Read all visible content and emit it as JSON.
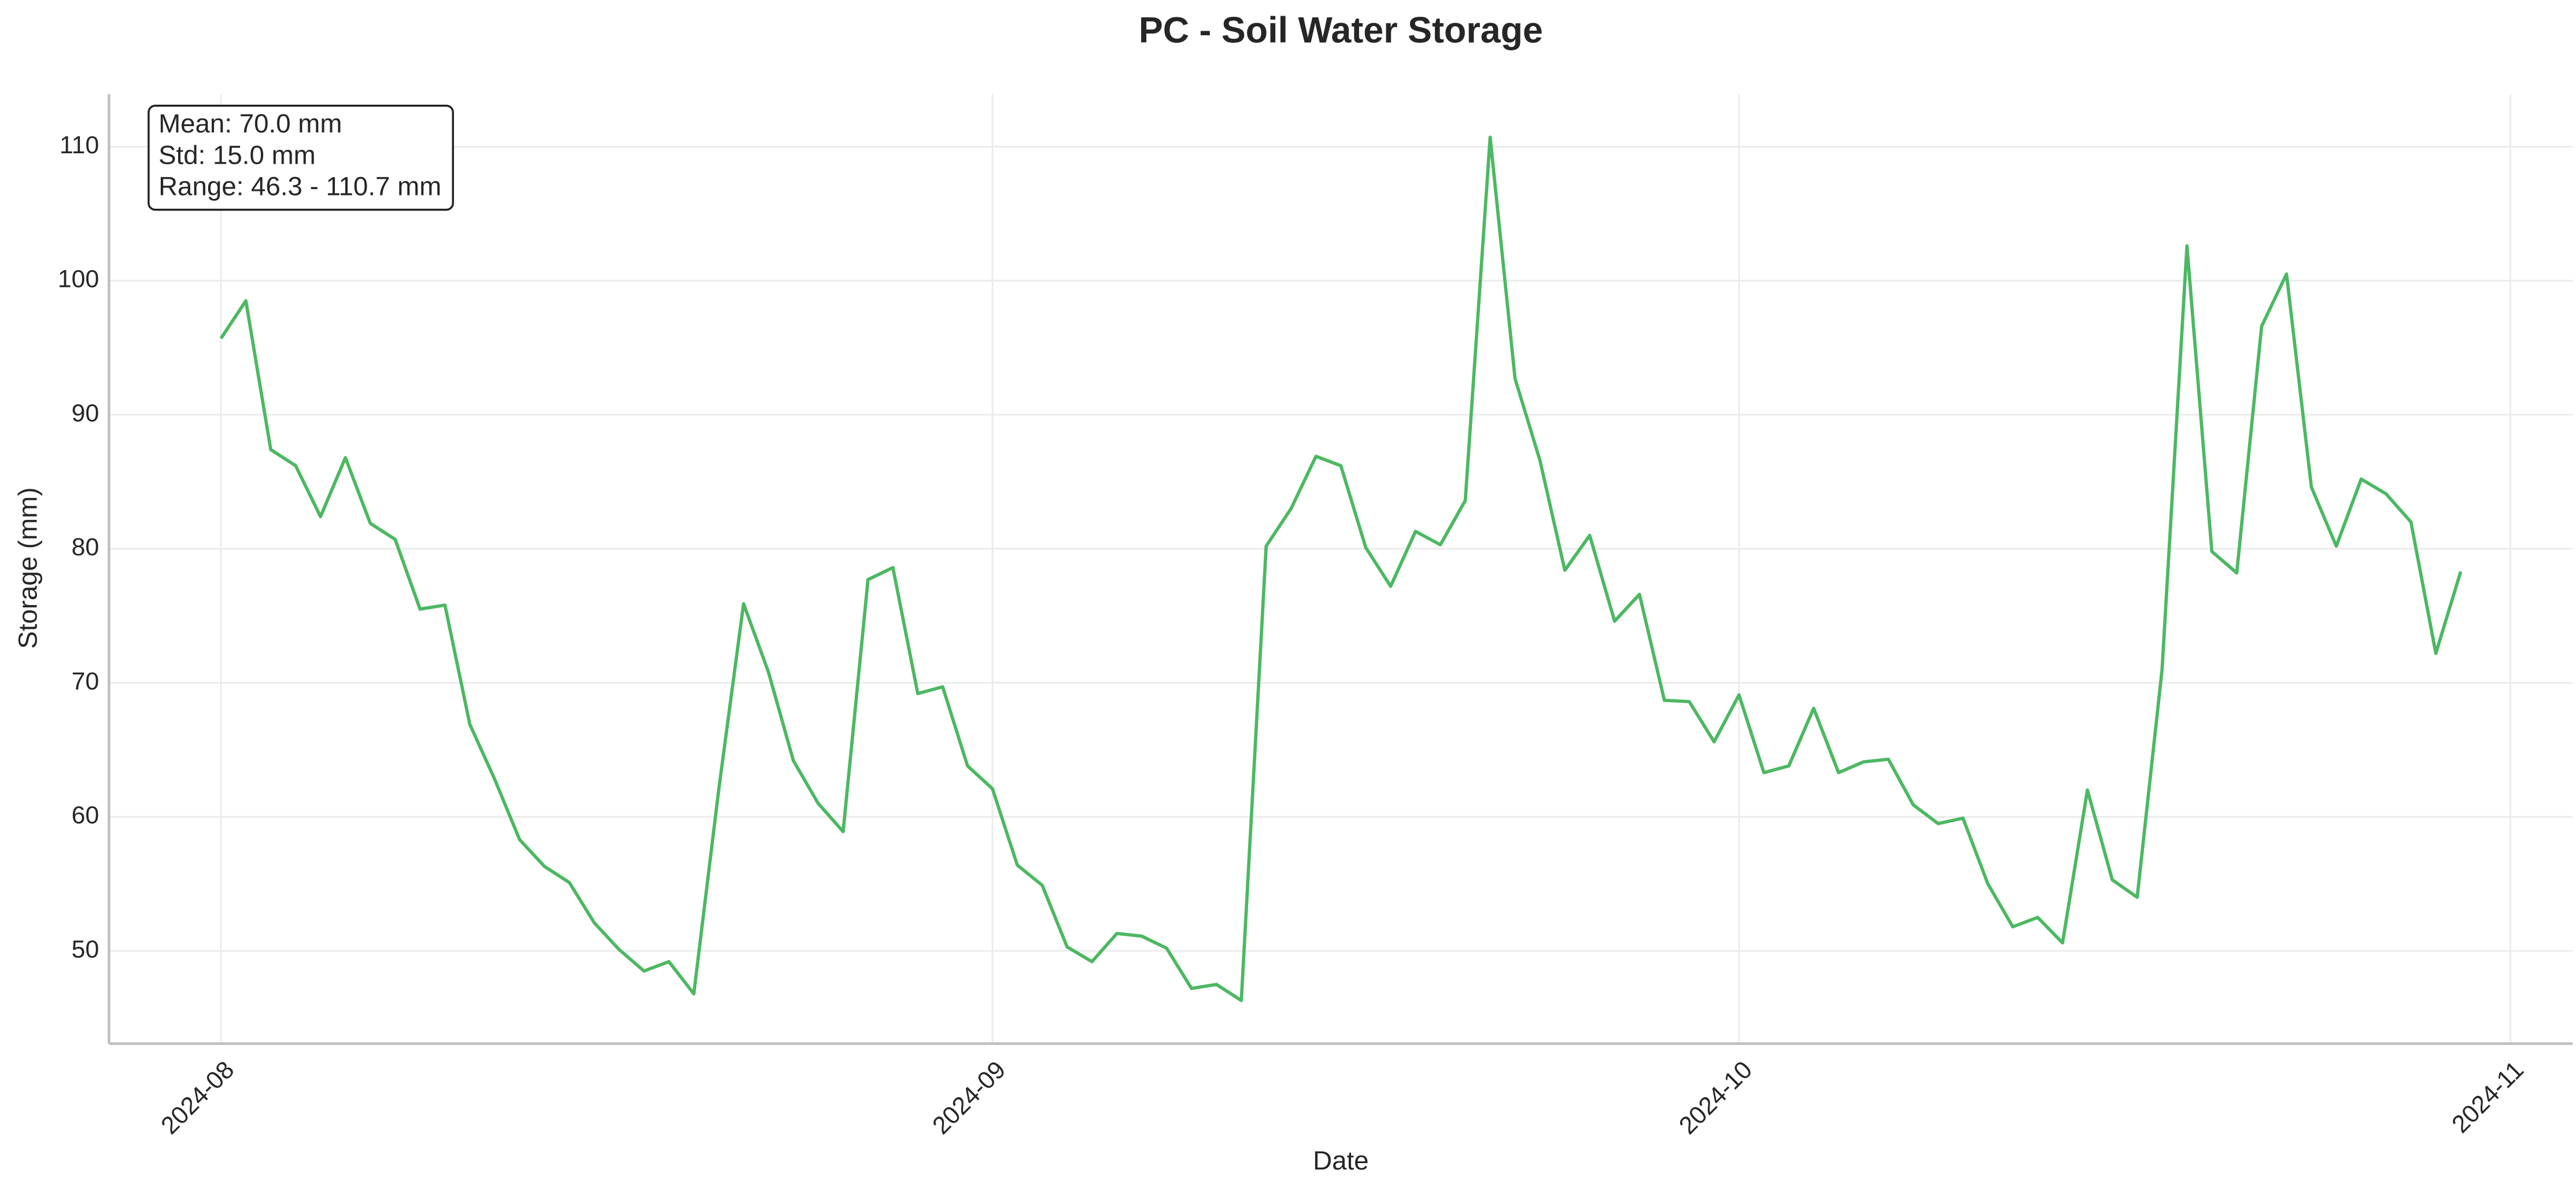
{
  "chart_data": {
    "type": "line",
    "title": "PC - Soil Water Storage",
    "xlabel": "Date",
    "ylabel": "Storage (mm)",
    "annotation": [
      "Mean: 70.0 mm",
      "Std: 15.0 mm",
      "Range: 46.3 - 110.7 mm"
    ],
    "color": "#4cb862",
    "grid": true,
    "x": [
      0,
      1,
      2,
      3,
      4,
      5,
      6,
      7,
      8,
      9,
      10,
      11,
      12,
      13,
      14,
      15,
      16,
      17,
      18,
      19,
      20,
      21,
      22,
      23,
      24,
      25,
      26,
      27,
      28,
      29,
      30,
      31,
      32,
      33,
      34,
      35,
      36,
      37,
      38,
      39,
      40,
      41,
      42,
      43,
      44,
      45,
      46,
      47,
      48,
      49,
      50,
      51,
      52,
      53,
      54,
      55,
      56,
      57,
      58,
      59,
      60,
      61,
      62,
      63,
      64,
      65,
      66,
      67,
      68,
      69,
      70,
      71,
      72,
      73,
      74,
      75,
      76,
      77,
      78,
      79,
      80,
      81,
      82,
      83,
      84,
      85,
      86,
      87,
      88,
      89,
      90
    ],
    "values": [
      95.7,
      98.5,
      87.4,
      86.2,
      82.4,
      86.8,
      81.9,
      80.7,
      75.5,
      75.8,
      66.9,
      62.8,
      58.3,
      56.3,
      55.1,
      52.1,
      50.1,
      48.5,
      49.2,
      46.8,
      62.0,
      75.9,
      70.8,
      64.2,
      61.0,
      58.9,
      77.7,
      78.6,
      69.2,
      69.7,
      63.8,
      62.1,
      56.4,
      54.9,
      50.3,
      49.2,
      51.3,
      51.1,
      50.2,
      47.2,
      47.5,
      46.3,
      80.2,
      83.0,
      86.9,
      86.2,
      80.1,
      77.2,
      81.3,
      80.3,
      83.6,
      110.7,
      92.7,
      86.6,
      78.4,
      81.0,
      74.6,
      76.6,
      68.7,
      68.6,
      65.6,
      69.1,
      63.3,
      63.8,
      68.1,
      63.3,
      64.1,
      64.3,
      60.9,
      59.5,
      59.9,
      55.0,
      51.8,
      52.5,
      50.6,
      62.0,
      55.3,
      54.0,
      71.0,
      102.6,
      79.8,
      78.2,
      96.6,
      100.5,
      84.6,
      80.2,
      85.2,
      84.1,
      82.0,
      72.2,
      78.3
    ],
    "xlim": [
      -4.5,
      94.5
    ],
    "xticks": [
      {
        "value": 0,
        "label": "2024-08"
      },
      {
        "value": 31,
        "label": "2024-09"
      },
      {
        "value": 61,
        "label": "2024-10"
      },
      {
        "value": 92,
        "label": "2024-11"
      }
    ],
    "ylim": [
      43.08,
      113.92
    ],
    "yticks": [
      50,
      60,
      70,
      80,
      90,
      100,
      110
    ]
  }
}
